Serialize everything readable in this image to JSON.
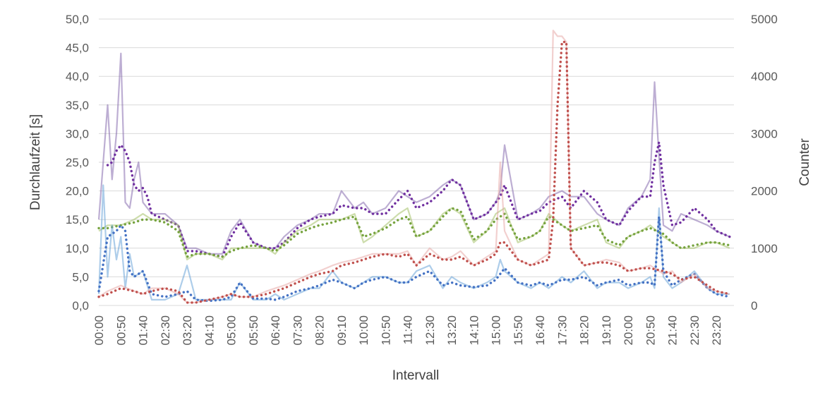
{
  "chart_data": {
    "type": "line",
    "title": "",
    "xlabel": "Intervall",
    "ylabel": "Durchlaufzeit [s]",
    "y2label": "Counter",
    "ylim": [
      0,
      50
    ],
    "y2lim": [
      0,
      5000
    ],
    "grid": true,
    "yticks": [
      "0,0",
      "5,0",
      "10,0",
      "15,0",
      "20,0",
      "25,0",
      "30,0",
      "35,0",
      "40,0",
      "45,0",
      "50,0"
    ],
    "y2ticks": [
      "0",
      "1000",
      "2000",
      "3000",
      "4000",
      "5000"
    ],
    "x_categories": [
      "00:00",
      "00:50",
      "01:40",
      "02:30",
      "03:20",
      "04:10",
      "05:00",
      "05:50",
      "06:40",
      "07:30",
      "08:20",
      "09:10",
      "10:00",
      "10:50",
      "11:40",
      "12:30",
      "13:20",
      "14:10",
      "15:00",
      "15:50",
      "16:40",
      "17:30",
      "18:20",
      "19:10",
      "20:00",
      "20:50",
      "21:40",
      "22:30",
      "23:20"
    ],
    "series_keys": [
      {
        "axis": "left",
        "color": "#7B5EA7",
        "style": "solid-light",
        "x": [
          "00:00",
          "00:20",
          "00:30",
          "00:40",
          "00:50",
          "01:00",
          "01:10",
          "01:20",
          "01:30",
          "01:40",
          "01:50",
          "02:00",
          "02:30",
          "03:00",
          "03:20",
          "03:40",
          "04:10",
          "04:40",
          "05:00",
          "05:20",
          "05:50",
          "06:20",
          "06:40",
          "07:00",
          "07:30",
          "08:00",
          "08:20",
          "08:50",
          "09:10",
          "09:40",
          "10:00",
          "10:20",
          "10:50",
          "11:20",
          "11:40",
          "12:00",
          "12:30",
          "13:00",
          "13:20",
          "13:40",
          "14:10",
          "14:40",
          "15:00",
          "15:10",
          "15:20",
          "15:50",
          "16:20",
          "16:40",
          "17:00",
          "17:30",
          "17:50",
          "18:20",
          "18:50",
          "19:10",
          "19:40",
          "20:00",
          "20:30",
          "20:50",
          "21:00",
          "21:10",
          "21:20",
          "21:40",
          "22:00",
          "22:30",
          "23:00",
          "23:20",
          "23:50"
        ],
        "values": [
          15,
          35,
          22,
          30,
          44,
          18,
          17,
          22,
          25,
          18,
          17,
          16,
          16,
          14,
          10,
          10,
          9,
          9,
          13,
          15,
          11,
          10,
          10,
          12,
          14,
          15,
          16,
          16,
          20,
          17,
          18,
          16,
          17,
          20,
          19,
          18,
          19,
          21,
          22,
          21,
          15,
          16,
          18,
          20,
          28,
          15,
          16,
          17,
          19,
          20,
          19,
          19,
          16,
          15,
          14,
          17,
          19,
          22,
          39,
          26,
          14,
          13,
          16,
          15,
          14,
          13,
          12
        ]
      },
      {
        "axis": "left",
        "color": "#7030A0",
        "style": "dotted",
        "x": [
          "00:20",
          "00:30",
          "00:40",
          "00:50",
          "01:00",
          "01:10",
          "01:20",
          "01:30",
          "01:40",
          "01:50",
          "02:00",
          "02:30",
          "03:00",
          "03:20",
          "03:40",
          "04:10",
          "04:40",
          "05:00",
          "05:20",
          "05:50",
          "06:20",
          "06:40",
          "07:00",
          "07:30",
          "08:00",
          "08:20",
          "08:50",
          "09:10",
          "09:40",
          "10:00",
          "10:20",
          "10:50",
          "11:20",
          "11:40",
          "12:00",
          "12:30",
          "13:00",
          "13:20",
          "13:40",
          "14:10",
          "14:40",
          "15:00",
          "15:10",
          "15:20",
          "15:50",
          "16:20",
          "16:40",
          "17:00",
          "17:30",
          "17:50",
          "18:20",
          "18:50",
          "19:10",
          "19:40",
          "20:00",
          "20:30",
          "20:50",
          "21:00",
          "21:10",
          "21:20",
          "21:40",
          "22:00",
          "22:30",
          "23:00",
          "23:20",
          "23:50"
        ],
        "values": [
          24.5,
          25,
          27,
          28,
          27,
          25,
          21,
          20,
          20.5,
          19,
          16,
          15,
          14,
          9.5,
          9.5,
          9,
          8.5,
          12,
          14.5,
          11,
          10,
          10,
          11,
          13.5,
          15,
          15.5,
          16,
          17.5,
          17,
          17,
          16,
          16,
          18.5,
          20,
          17,
          18,
          20,
          22,
          21,
          15,
          16,
          18,
          19,
          21,
          15,
          16,
          16.5,
          18,
          19,
          17,
          20,
          18,
          15,
          14,
          16.5,
          19,
          19,
          25,
          28.5,
          21,
          14,
          14.5,
          17,
          15,
          13,
          12
        ]
      },
      {
        "axis": "left",
        "color": "#9BBB59",
        "style": "solid-light",
        "x": [
          "00:00",
          "00:20",
          "00:50",
          "01:20",
          "01:40",
          "02:00",
          "02:30",
          "03:00",
          "03:20",
          "03:40",
          "04:10",
          "04:40",
          "05:00",
          "05:20",
          "05:50",
          "06:20",
          "06:40",
          "07:00",
          "07:30",
          "08:00",
          "08:20",
          "08:50",
          "09:10",
          "09:40",
          "10:00",
          "10:20",
          "10:50",
          "11:20",
          "11:40",
          "12:00",
          "12:30",
          "13:00",
          "13:20",
          "13:40",
          "14:10",
          "14:40",
          "15:00",
          "15:20",
          "15:50",
          "16:20",
          "16:40",
          "17:00",
          "17:30",
          "17:50",
          "18:20",
          "18:50",
          "19:10",
          "19:40",
          "20:00",
          "20:30",
          "20:50",
          "21:20",
          "21:40",
          "22:00",
          "22:30",
          "23:00",
          "23:20",
          "23:50"
        ],
        "values": [
          13,
          14,
          14,
          15,
          16,
          15,
          15,
          14,
          8,
          9,
          9,
          8,
          10,
          10,
          10,
          10,
          9,
          11,
          13,
          14,
          15,
          15,
          15,
          16,
          11,
          12,
          14,
          16,
          17,
          12,
          13,
          16,
          17,
          16,
          11,
          13,
          16,
          17,
          11,
          12,
          13,
          16,
          14,
          13,
          14,
          15,
          11,
          10,
          12,
          13,
          14,
          12,
          11,
          10,
          10,
          11,
          11,
          10
        ]
      },
      {
        "axis": "left",
        "color": "#76A33E",
        "style": "dotted",
        "x": [
          "00:00",
          "00:20",
          "00:50",
          "01:20",
          "01:40",
          "02:00",
          "02:30",
          "03:00",
          "03:20",
          "03:40",
          "04:10",
          "04:40",
          "05:00",
          "05:20",
          "05:50",
          "06:20",
          "06:40",
          "07:00",
          "07:30",
          "08:00",
          "08:20",
          "08:50",
          "09:10",
          "09:40",
          "10:00",
          "10:20",
          "10:50",
          "11:20",
          "11:40",
          "12:00",
          "12:30",
          "13:00",
          "13:20",
          "13:40",
          "14:10",
          "14:40",
          "15:00",
          "15:20",
          "15:50",
          "16:20",
          "16:40",
          "17:00",
          "17:30",
          "17:50",
          "18:20",
          "18:50",
          "19:10",
          "19:40",
          "20:00",
          "20:30",
          "20:50",
          "21:20",
          "21:40",
          "22:00",
          "22:30",
          "23:00",
          "23:20",
          "23:50"
        ],
        "values": [
          13.5,
          13.5,
          14,
          14.5,
          15,
          15,
          14.5,
          13,
          8.5,
          9,
          9,
          8.5,
          9.5,
          10,
          10.5,
          10,
          9.5,
          10.5,
          12.5,
          13.5,
          14,
          14.5,
          15,
          15.5,
          12,
          12.5,
          13.5,
          15,
          15.5,
          12,
          13,
          15.5,
          17,
          16.5,
          11.5,
          13,
          15,
          16,
          11.5,
          12,
          13,
          15.5,
          14,
          13,
          13.5,
          14,
          11.5,
          10.5,
          12,
          13,
          13.5,
          12.5,
          11,
          10,
          10.5,
          11,
          11,
          10.5
        ]
      },
      {
        "axis": "left",
        "color": "#5B9BD5",
        "style": "solid-light",
        "x": [
          "00:00",
          "00:10",
          "00:20",
          "00:30",
          "00:40",
          "00:50",
          "01:00",
          "01:10",
          "01:20",
          "01:40",
          "02:00",
          "02:30",
          "03:00",
          "03:20",
          "03:40",
          "04:10",
          "04:40",
          "05:00",
          "05:20",
          "05:50",
          "06:20",
          "06:40",
          "07:00",
          "07:30",
          "08:00",
          "08:20",
          "08:50",
          "09:10",
          "09:40",
          "10:00",
          "10:20",
          "10:50",
          "11:20",
          "11:40",
          "12:00",
          "12:30",
          "13:00",
          "13:20",
          "13:40",
          "14:10",
          "14:40",
          "15:00",
          "15:10",
          "15:20",
          "15:50",
          "16:20",
          "16:40",
          "17:00",
          "17:30",
          "17:50",
          "18:20",
          "18:50",
          "19:10",
          "19:40",
          "20:00",
          "20:30",
          "20:50",
          "21:00",
          "21:10",
          "21:20",
          "21:40",
          "22:00",
          "22:30",
          "23:00",
          "23:20",
          "23:50"
        ],
        "values": [
          2,
          21,
          5,
          14,
          8,
          12,
          3,
          9,
          5,
          6,
          1,
          1,
          2,
          7,
          1,
          1,
          1,
          1,
          4,
          1,
          1,
          2,
          1,
          2,
          3,
          3,
          6,
          4,
          3,
          4,
          5,
          5,
          4,
          4,
          6,
          7,
          3,
          5,
          4,
          3,
          4,
          5,
          8,
          6,
          4,
          3,
          4,
          3,
          5,
          4,
          6,
          3,
          4,
          4,
          3,
          4,
          5,
          3,
          17,
          5,
          3,
          4,
          6,
          3,
          2,
          2
        ]
      },
      {
        "axis": "left",
        "color": "#4472C4",
        "style": "dotted",
        "x": [
          "00:00",
          "00:20",
          "00:30",
          "00:40",
          "00:50",
          "01:00",
          "01:10",
          "01:20",
          "01:40",
          "02:00",
          "02:30",
          "03:00",
          "03:20",
          "03:40",
          "04:10",
          "04:40",
          "05:00",
          "05:20",
          "05:50",
          "06:20",
          "06:40",
          "07:00",
          "07:30",
          "08:00",
          "08:20",
          "08:50",
          "09:10",
          "09:40",
          "10:00",
          "10:20",
          "10:50",
          "11:20",
          "11:40",
          "12:00",
          "12:30",
          "13:00",
          "13:20",
          "13:40",
          "14:10",
          "14:40",
          "15:00",
          "15:10",
          "15:20",
          "15:50",
          "16:20",
          "16:40",
          "17:00",
          "17:30",
          "17:50",
          "18:20",
          "18:50",
          "19:10",
          "19:40",
          "20:00",
          "20:30",
          "20:50",
          "21:00",
          "21:10",
          "21:20",
          "21:40",
          "22:00",
          "22:30",
          "23:00",
          "23:20",
          "23:50"
        ],
        "values": [
          2.5,
          12,
          12.5,
          13,
          14,
          13,
          6,
          5,
          6,
          2,
          1.5,
          2,
          2.5,
          1,
          0.8,
          1,
          1.5,
          4,
          1.2,
          1.2,
          1,
          1.5,
          2.5,
          3,
          3.5,
          4.5,
          4,
          3,
          4,
          4.5,
          5,
          4,
          4,
          5,
          6,
          3.5,
          4,
          3.5,
          3.2,
          3.5,
          4.5,
          5.5,
          6.5,
          4,
          3.5,
          4,
          3.5,
          4.5,
          4.5,
          5,
          3.5,
          4,
          4.5,
          3.5,
          4,
          4,
          3.5,
          15.5,
          6,
          3.5,
          4.5,
          5.5,
          3,
          2,
          1.5
        ]
      },
      {
        "axis": "right",
        "color": "#E6A1A0",
        "style": "solid-light",
        "x": [
          "00:00",
          "00:20",
          "00:50",
          "01:20",
          "01:40",
          "02:00",
          "02:30",
          "03:00",
          "03:20",
          "03:40",
          "04:10",
          "04:40",
          "05:00",
          "05:20",
          "05:50",
          "06:20",
          "06:40",
          "07:00",
          "07:30",
          "08:00",
          "08:20",
          "08:50",
          "09:10",
          "09:40",
          "10:00",
          "10:20",
          "10:50",
          "11:20",
          "11:40",
          "12:00",
          "12:30",
          "13:00",
          "13:20",
          "13:40",
          "14:10",
          "14:40",
          "15:00",
          "15:10",
          "15:20",
          "15:50",
          "16:20",
          "16:40",
          "17:00",
          "17:10",
          "17:20",
          "17:30",
          "17:40",
          "17:50",
          "18:20",
          "18:50",
          "19:10",
          "19:40",
          "20:00",
          "20:30",
          "20:50",
          "21:20",
          "21:40",
          "22:00",
          "22:30",
          "23:00",
          "23:20",
          "23:50"
        ],
        "values": [
          150,
          250,
          350,
          250,
          200,
          300,
          300,
          200,
          50,
          50,
          100,
          150,
          200,
          150,
          150,
          250,
          300,
          350,
          450,
          550,
          600,
          700,
          750,
          800,
          850,
          900,
          900,
          900,
          950,
          700,
          1000,
          800,
          850,
          950,
          700,
          850,
          950,
          2500,
          1300,
          800,
          700,
          800,
          900,
          4800,
          4700,
          4700,
          4600,
          1000,
          700,
          750,
          800,
          750,
          600,
          650,
          700,
          550,
          600,
          400,
          550,
          300,
          250,
          200
        ]
      },
      {
        "axis": "right",
        "color": "#C0504D",
        "style": "dotted",
        "x": [
          "00:00",
          "00:20",
          "00:50",
          "01:20",
          "01:40",
          "02:00",
          "02:30",
          "03:00",
          "03:20",
          "03:40",
          "04:10",
          "04:40",
          "05:00",
          "05:20",
          "05:50",
          "06:20",
          "06:40",
          "07:00",
          "07:30",
          "08:00",
          "08:20",
          "08:50",
          "09:10",
          "09:40",
          "10:00",
          "10:20",
          "10:50",
          "11:20",
          "11:40",
          "12:00",
          "12:30",
          "13:00",
          "13:20",
          "13:40",
          "14:10",
          "14:40",
          "15:00",
          "15:10",
          "15:20",
          "15:50",
          "16:20",
          "16:40",
          "17:00",
          "17:10",
          "17:20",
          "17:30",
          "17:40",
          "17:50",
          "18:20",
          "18:50",
          "19:10",
          "19:40",
          "20:00",
          "20:30",
          "20:50",
          "21:20",
          "21:40",
          "22:00",
          "22:30",
          "23:00",
          "23:20",
          "23:50"
        ],
        "values": [
          150,
          200,
          300,
          250,
          200,
          250,
          300,
          250,
          50,
          50,
          100,
          150,
          200,
          150,
          150,
          200,
          250,
          300,
          400,
          500,
          550,
          600,
          700,
          750,
          800,
          850,
          900,
          850,
          900,
          700,
          900,
          800,
          800,
          850,
          700,
          800,
          900,
          1100,
          1100,
          800,
          700,
          750,
          800,
          1500,
          3500,
          4600,
          4600,
          1000,
          700,
          750,
          750,
          700,
          600,
          650,
          650,
          600,
          550,
          450,
          500,
          350,
          250,
          200
        ]
      }
    ]
  }
}
